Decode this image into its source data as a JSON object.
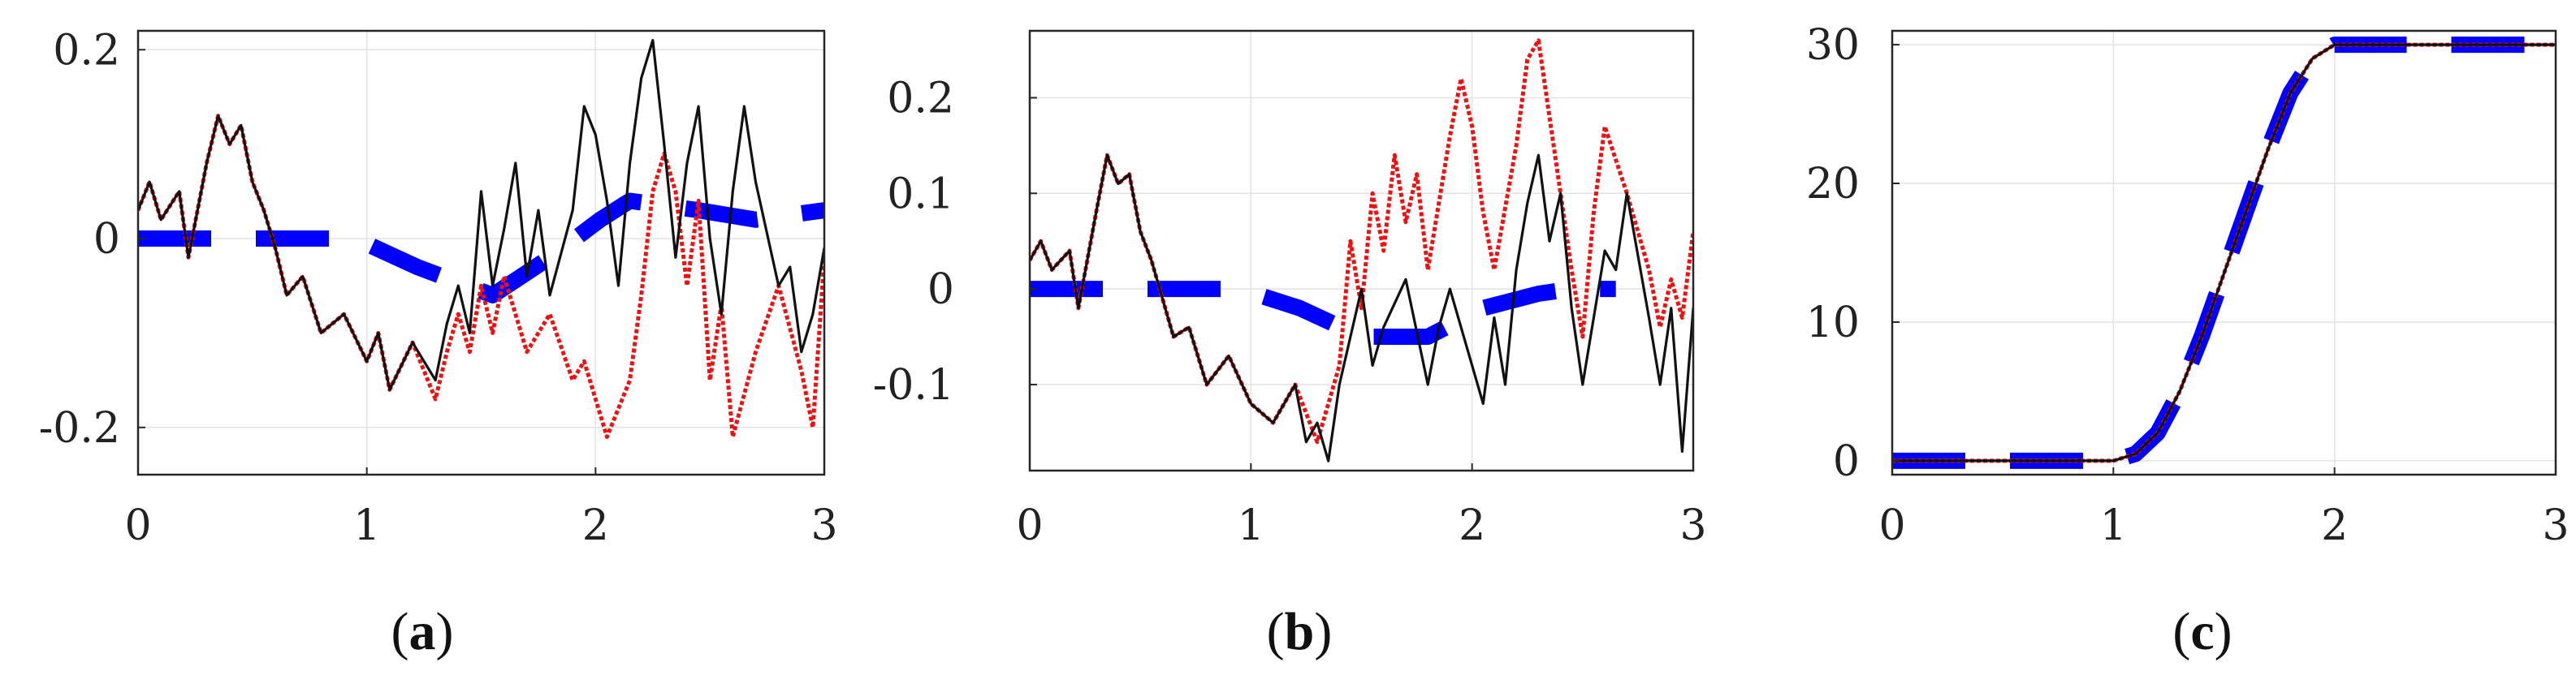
{
  "chart_data": [
    {
      "type": "line",
      "label": "(a)",
      "label_parts": {
        "open": "(",
        "letter": "a",
        "close": ")"
      },
      "grid": true,
      "xlim": [
        0,
        3
      ],
      "ylim": [
        -0.25,
        0.22
      ],
      "x_ticks": [
        0,
        1,
        2,
        3
      ],
      "x_tick_labels": [
        "0",
        "1",
        "2",
        "3"
      ],
      "y_ticks": [
        -0.2,
        0,
        0.2
      ],
      "y_tick_labels": [
        "-0.2",
        "0",
        "0.2"
      ],
      "series": [
        {
          "style": "thick blue dashed",
          "color": "#0000ff",
          "x": [
            0,
            0.35,
            0.7,
            0.95,
            1.22,
            1.55,
            1.8,
            2.02,
            2.15,
            2.45,
            2.7,
            3.0
          ],
          "y": [
            0,
            0,
            0,
            0,
            -0.03,
            -0.06,
            -0.02,
            0.02,
            0.04,
            0.03,
            0.02,
            0.03
          ]
        },
        {
          "style": "red dotted",
          "color": "#ee1111",
          "x": [
            0,
            0.05,
            0.1,
            0.18,
            0.22,
            0.3,
            0.35,
            0.4,
            0.45,
            0.5,
            0.55,
            0.6,
            0.65,
            0.72,
            0.8,
            0.9,
            1.0,
            1.05,
            1.1,
            1.2,
            1.3,
            1.35,
            1.4,
            1.45,
            1.5,
            1.55,
            1.6,
            1.7,
            1.8,
            1.9,
            1.95,
            2.05,
            2.15,
            2.2,
            2.25,
            2.3,
            2.35,
            2.4,
            2.45,
            2.5,
            2.55,
            2.6,
            2.7,
            2.8,
            2.9,
            2.95,
            3.0
          ],
          "y": [
            0.03,
            0.06,
            0.02,
            0.05,
            -0.02,
            0.08,
            0.13,
            0.1,
            0.12,
            0.06,
            0.03,
            -0.01,
            -0.06,
            -0.04,
            -0.1,
            -0.08,
            -0.13,
            -0.1,
            -0.16,
            -0.11,
            -0.17,
            -0.12,
            -0.08,
            -0.12,
            -0.05,
            -0.1,
            -0.04,
            -0.12,
            -0.08,
            -0.15,
            -0.13,
            -0.21,
            -0.15,
            -0.06,
            0.05,
            0.09,
            0.05,
            -0.05,
            0.04,
            -0.15,
            -0.07,
            -0.21,
            -0.12,
            -0.05,
            -0.14,
            -0.2,
            -0.02
          ]
        },
        {
          "style": "black solid",
          "color": "#111111",
          "x": [
            0,
            0.05,
            0.1,
            0.18,
            0.22,
            0.3,
            0.35,
            0.4,
            0.45,
            0.5,
            0.55,
            0.6,
            0.65,
            0.72,
            0.8,
            0.9,
            1.0,
            1.05,
            1.1,
            1.2,
            1.3,
            1.35,
            1.4,
            1.45,
            1.5,
            1.55,
            1.6,
            1.65,
            1.7,
            1.75,
            1.8,
            1.9,
            1.95,
            2.0,
            2.05,
            2.1,
            2.15,
            2.2,
            2.25,
            2.3,
            2.35,
            2.4,
            2.45,
            2.5,
            2.55,
            2.6,
            2.65,
            2.7,
            2.8,
            2.85,
            2.9,
            2.95,
            3.0
          ],
          "y": [
            0.03,
            0.06,
            0.02,
            0.05,
            -0.02,
            0.08,
            0.13,
            0.1,
            0.12,
            0.06,
            0.03,
            -0.01,
            -0.06,
            -0.04,
            -0.1,
            -0.08,
            -0.13,
            -0.1,
            -0.16,
            -0.11,
            -0.15,
            -0.09,
            -0.05,
            -0.1,
            0.05,
            -0.05,
            0.01,
            0.08,
            -0.04,
            0.03,
            -0.06,
            0.03,
            0.14,
            0.11,
            0.04,
            -0.05,
            0.08,
            0.17,
            0.21,
            0.1,
            -0.02,
            0.08,
            0.14,
            0.0,
            -0.08,
            0.05,
            0.14,
            0.06,
            -0.05,
            -0.03,
            -0.12,
            -0.08,
            -0.01
          ]
        }
      ]
    },
    {
      "type": "line",
      "label": "(b)",
      "label_parts": {
        "open": "(",
        "letter": "b",
        "close": ")"
      },
      "grid": true,
      "xlim": [
        0,
        3
      ],
      "ylim": [
        -0.19,
        0.27
      ],
      "x_ticks": [
        0,
        1,
        2,
        3
      ],
      "x_tick_labels": [
        "0",
        "1",
        "2",
        "3"
      ],
      "y_ticks": [
        -0.1,
        0,
        0.1,
        0.2
      ],
      "y_tick_labels": [
        "-0.1",
        "0",
        "0.1",
        "0.2"
      ],
      "series": [
        {
          "style": "thick blue dashed",
          "color": "#0000ff",
          "x": [
            0,
            0.35,
            0.7,
            0.95,
            1.22,
            1.5,
            1.8,
            2.05,
            2.3,
            2.45,
            2.6,
            2.65
          ],
          "y": [
            0,
            0,
            0,
            0,
            -0.02,
            -0.05,
            -0.05,
            -0.02,
            -0.005,
            0,
            0,
            0
          ]
        },
        {
          "style": "red dotted",
          "color": "#ee1111",
          "x": [
            0,
            0.05,
            0.1,
            0.18,
            0.22,
            0.3,
            0.35,
            0.4,
            0.45,
            0.5,
            0.55,
            0.6,
            0.65,
            0.72,
            0.8,
            0.9,
            1.0,
            1.1,
            1.2,
            1.3,
            1.35,
            1.4,
            1.45,
            1.5,
            1.55,
            1.6,
            1.65,
            1.7,
            1.75,
            1.8,
            1.85,
            1.9,
            1.95,
            2.0,
            2.05,
            2.1,
            2.2,
            2.25,
            2.3,
            2.35,
            2.4,
            2.45,
            2.5,
            2.55,
            2.6,
            2.7,
            2.8,
            2.85,
            2.9,
            2.95,
            3.0
          ],
          "y": [
            0.03,
            0.05,
            0.02,
            0.04,
            -0.02,
            0.08,
            0.14,
            0.11,
            0.12,
            0.06,
            0.03,
            -0.01,
            -0.05,
            -0.04,
            -0.1,
            -0.07,
            -0.12,
            -0.14,
            -0.1,
            -0.16,
            -0.12,
            -0.08,
            0.05,
            -0.02,
            0.1,
            0.04,
            0.14,
            0.07,
            0.12,
            0.02,
            0.09,
            0.16,
            0.22,
            0.17,
            0.08,
            0.02,
            0.15,
            0.24,
            0.26,
            0.18,
            0.1,
            0.02,
            -0.05,
            0.08,
            0.17,
            0.1,
            0.02,
            -0.04,
            0.01,
            -0.03,
            0.06
          ]
        },
        {
          "style": "black solid",
          "color": "#111111",
          "x": [
            0,
            0.05,
            0.1,
            0.18,
            0.22,
            0.3,
            0.35,
            0.4,
            0.45,
            0.5,
            0.55,
            0.6,
            0.65,
            0.72,
            0.8,
            0.9,
            1.0,
            1.1,
            1.2,
            1.25,
            1.3,
            1.35,
            1.4,
            1.45,
            1.5,
            1.55,
            1.6,
            1.7,
            1.8,
            1.85,
            1.9,
            2.0,
            2.05,
            2.1,
            2.15,
            2.2,
            2.25,
            2.3,
            2.35,
            2.4,
            2.45,
            2.5,
            2.6,
            2.65,
            2.7,
            2.8,
            2.85,
            2.9,
            2.95,
            3.0
          ],
          "y": [
            0.03,
            0.05,
            0.02,
            0.04,
            -0.02,
            0.08,
            0.14,
            0.11,
            0.12,
            0.06,
            0.03,
            -0.01,
            -0.05,
            -0.04,
            -0.1,
            -0.07,
            -0.12,
            -0.14,
            -0.1,
            -0.16,
            -0.14,
            -0.18,
            -0.1,
            -0.05,
            0.0,
            -0.08,
            -0.04,
            0.01,
            -0.1,
            -0.04,
            0.0,
            -0.08,
            -0.12,
            -0.03,
            -0.1,
            0.02,
            0.09,
            0.14,
            0.05,
            0.1,
            -0.02,
            -0.1,
            0.04,
            0.02,
            0.1,
            -0.03,
            -0.1,
            -0.02,
            -0.17,
            -0.02
          ]
        }
      ]
    },
    {
      "type": "line",
      "label": "(c)",
      "label_parts": {
        "open": "(",
        "letter": "c",
        "close": ")"
      },
      "grid": true,
      "xlim": [
        0,
        3
      ],
      "ylim": [
        -1,
        31
      ],
      "x_ticks": [
        0,
        1,
        2,
        3
      ],
      "x_tick_labels": [
        "0",
        "1",
        "2",
        "3"
      ],
      "y_ticks": [
        0,
        10,
        20,
        30
      ],
      "y_tick_labels": [
        "0",
        "10",
        "20",
        "30"
      ],
      "series": [
        {
          "style": "thick blue dashed",
          "color": "#0000ff",
          "x": [
            0,
            0.5,
            0.9,
            1.0,
            1.1,
            1.2,
            1.3,
            1.4,
            1.5,
            1.6,
            1.7,
            1.8,
            1.9,
            2.0,
            2.1,
            2.5,
            3.0
          ],
          "y": [
            0,
            0,
            0,
            0,
            0.5,
            2.0,
            5.0,
            9.0,
            13.5,
            18.0,
            22.5,
            26.5,
            29.0,
            30.0,
            30.0,
            30.0,
            30.0
          ]
        },
        {
          "style": "red dotted",
          "color": "#ee1111",
          "x": [
            0,
            0.5,
            0.9,
            1.0,
            1.1,
            1.2,
            1.3,
            1.4,
            1.5,
            1.6,
            1.7,
            1.8,
            1.9,
            2.0,
            2.1,
            2.5,
            3.0
          ],
          "y": [
            0,
            0,
            0,
            0,
            0.5,
            2.0,
            5.0,
            9.0,
            13.5,
            18.0,
            22.5,
            26.5,
            29.0,
            30.0,
            30.0,
            30.0,
            30.0
          ]
        },
        {
          "style": "black solid",
          "color": "#111111",
          "x": [
            0,
            0.5,
            0.9,
            1.0,
            1.1,
            1.2,
            1.3,
            1.4,
            1.5,
            1.6,
            1.7,
            1.8,
            1.9,
            2.0,
            2.1,
            2.5,
            3.0
          ],
          "y": [
            0,
            0,
            0,
            0,
            0.5,
            2.0,
            5.0,
            9.0,
            13.5,
            18.0,
            22.5,
            26.5,
            29.0,
            30.0,
            30.0,
            30.0,
            30.0
          ]
        }
      ]
    }
  ]
}
